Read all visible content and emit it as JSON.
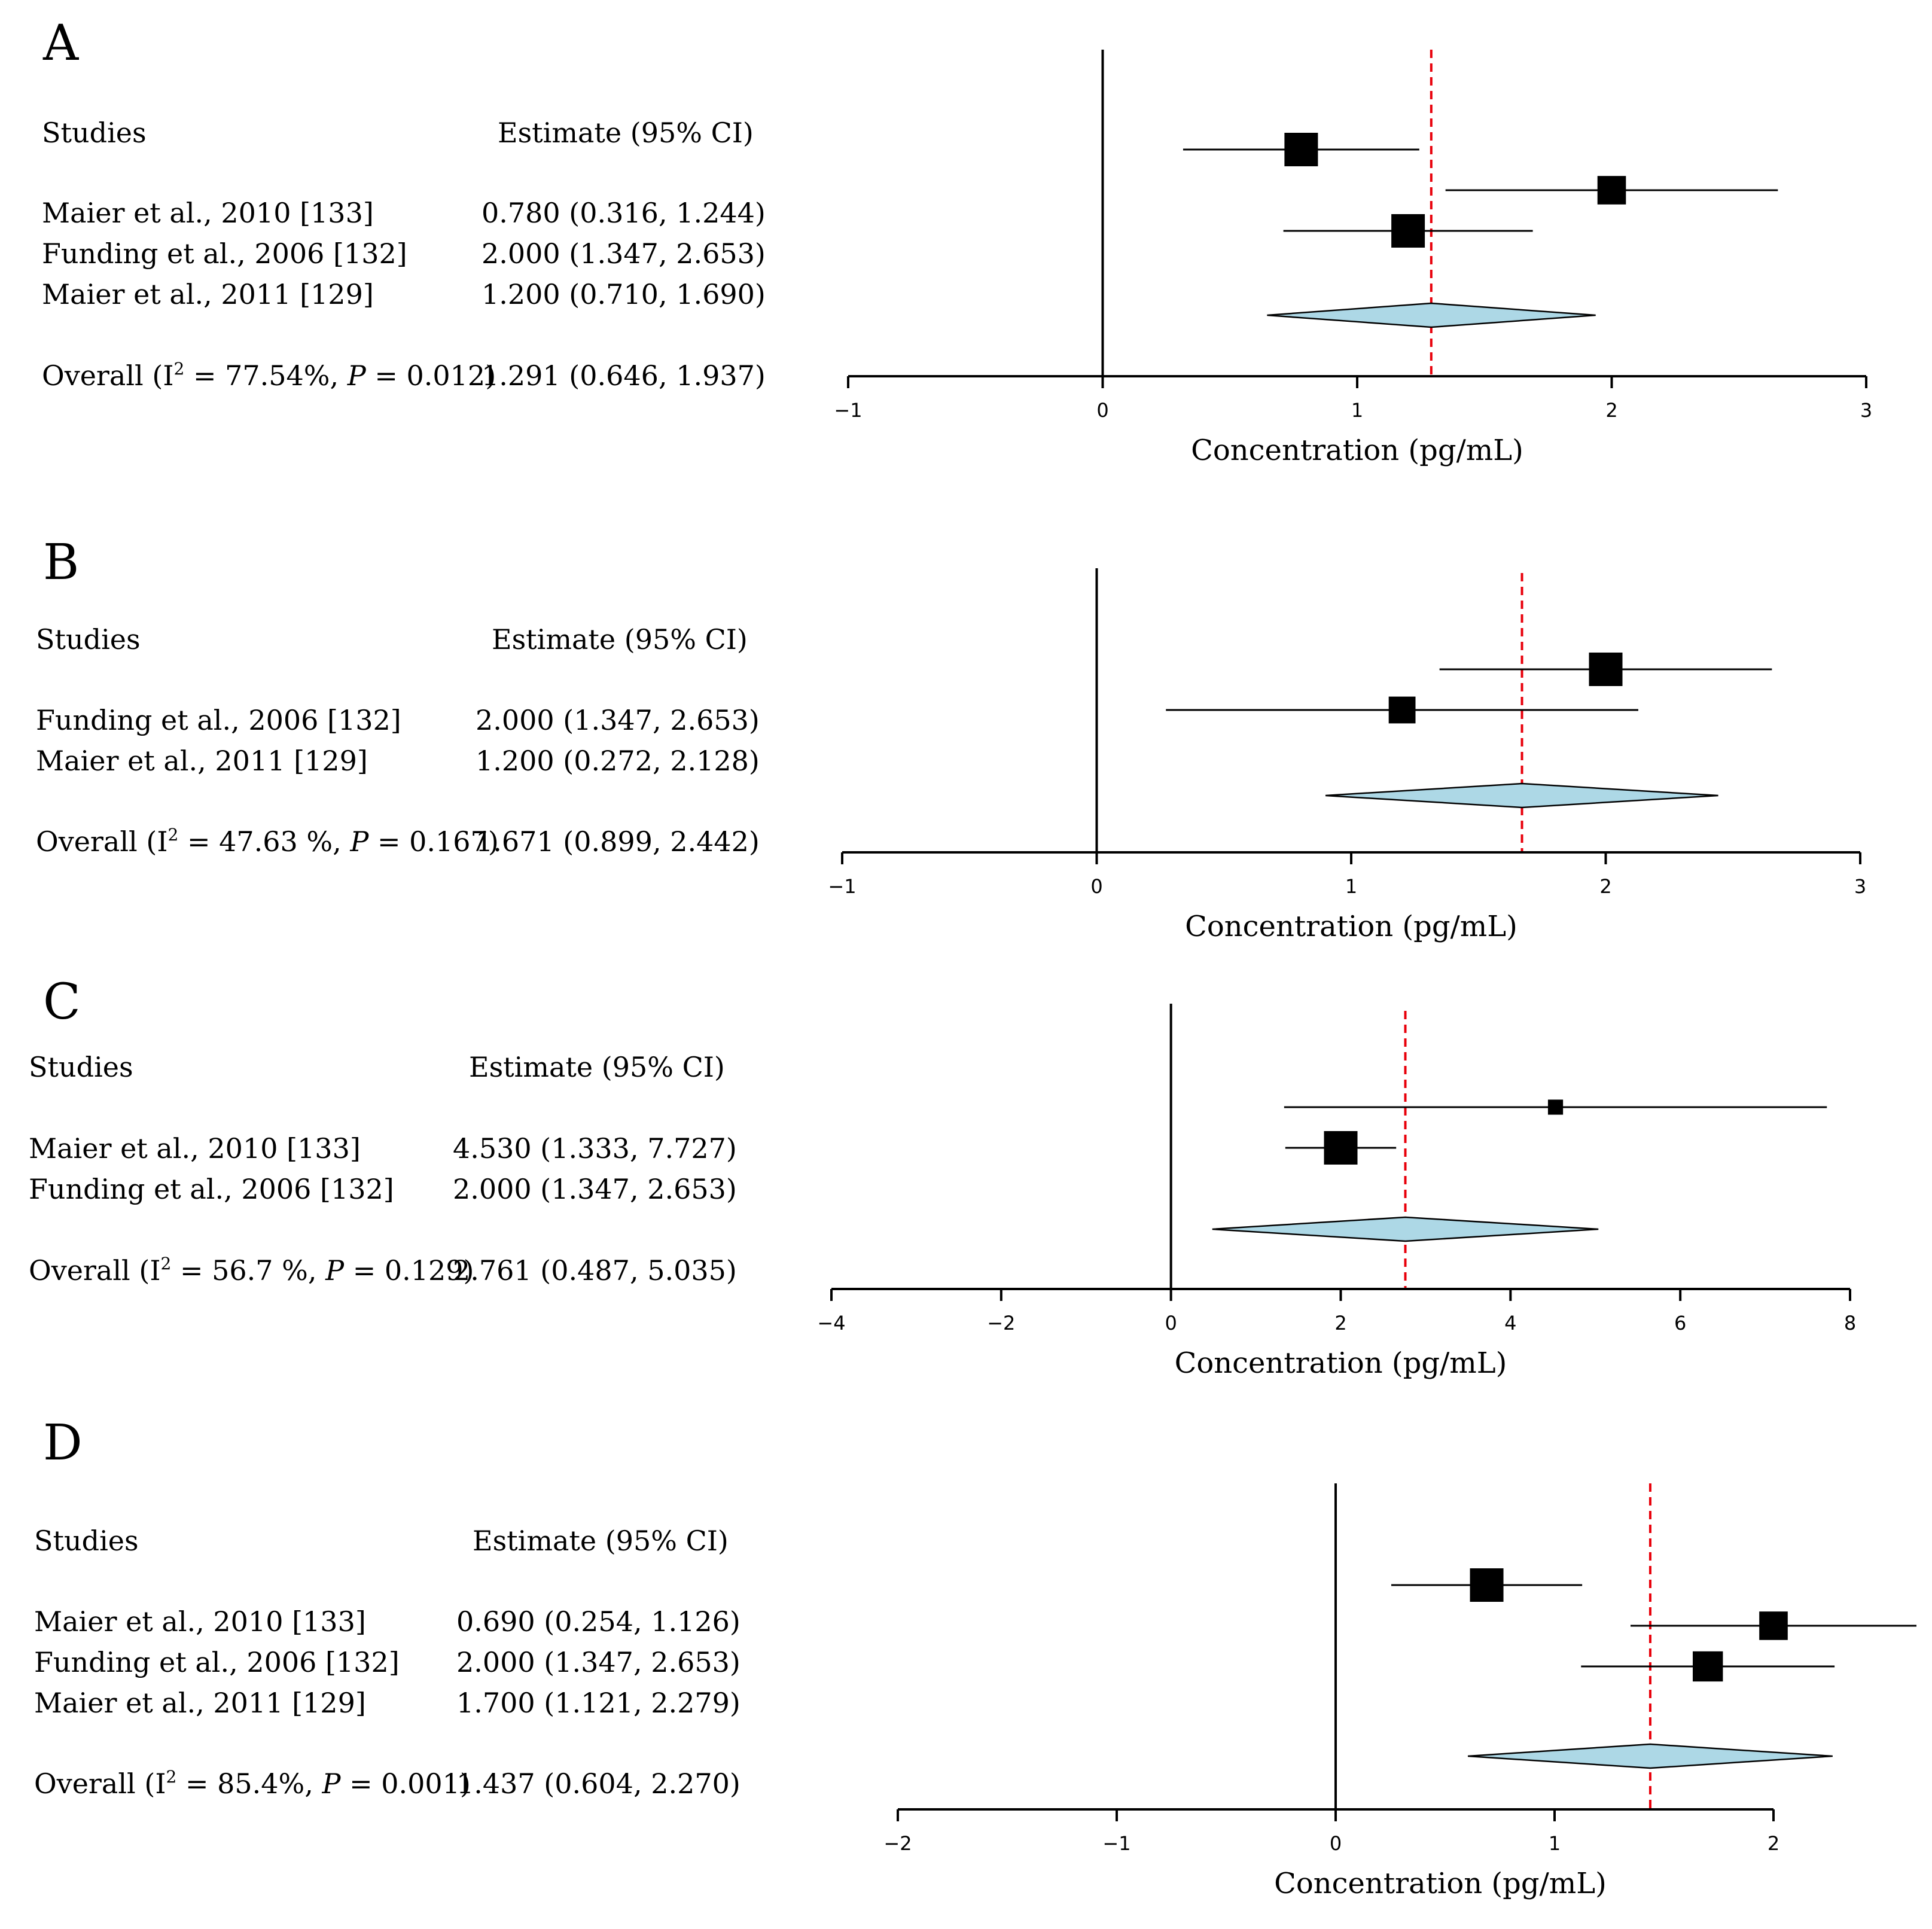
{
  "chart_data": [
    {
      "type": "forest",
      "panel": "A",
      "studies_header": "Studies",
      "estimate_header": "Estimate (95% CI)",
      "xlabel": "Concentration (pg/mL)",
      "xlim": [
        -1,
        3
      ],
      "ticks": [
        -1,
        0,
        1,
        2,
        3
      ],
      "tick_labels": [
        "−1",
        "0",
        "1",
        "2",
        "3"
      ],
      "reference_line": 0,
      "studies": [
        {
          "label": "Maier et al., 2010 [133]",
          "estimate_text": "0.780 (0.316, 1.244)",
          "estimate": 0.78,
          "lower": 0.316,
          "upper": 1.244,
          "weight": 1.0
        },
        {
          "label": "Funding et al., 2006 [132]",
          "estimate_text": "2.000 (1.347, 2.653)",
          "estimate": 2.0,
          "lower": 1.347,
          "upper": 2.653,
          "weight": 0.85
        },
        {
          "label": "Maier et al., 2011 [129]",
          "estimate_text": "1.200 (0.710, 1.690)",
          "estimate": 1.2,
          "lower": 0.71,
          "upper": 1.69,
          "weight": 1.0
        }
      ],
      "overall": {
        "label_prefix": "Overall (I",
        "sup": "2",
        "label_mid": " = 77.54%, ",
        "p_label": "P",
        "label_suffix": " = 0.012)",
        "estimate_text": "1.291 (0.646, 1.937)",
        "estimate": 1.291,
        "lower": 0.646,
        "upper": 1.937
      }
    },
    {
      "type": "forest",
      "panel": "B",
      "studies_header": "Studies",
      "estimate_header": "Estimate (95% CI)",
      "xlabel": "Concentration (pg/mL)",
      "xlim": [
        -1,
        3
      ],
      "ticks": [
        -1,
        0,
        1,
        2,
        3
      ],
      "tick_labels": [
        "−1",
        "0",
        "1",
        "2",
        "3"
      ],
      "reference_line": 0,
      "studies": [
        {
          "label": "Funding et al., 2006 [132]",
          "estimate_text": "2.000 (1.347, 2.653)",
          "estimate": 2.0,
          "lower": 1.347,
          "upper": 2.653,
          "weight": 1.0
        },
        {
          "label": "Maier et al., 2011 [129]",
          "estimate_text": "1.200 (0.272, 2.128)",
          "estimate": 1.2,
          "lower": 0.272,
          "upper": 2.128,
          "weight": 0.8
        }
      ],
      "overall": {
        "label_prefix": "Overall (I",
        "sup": "2",
        "label_mid": " = 47.63 %, ",
        "p_label": "P",
        "label_suffix": " = 0.167)",
        "estimate_text": "1.671 (0.899, 2.442)",
        "estimate": 1.671,
        "lower": 0.899,
        "upper": 2.442
      }
    },
    {
      "type": "forest",
      "panel": "C",
      "studies_header": "Studies",
      "estimate_header": "Estimate (95% CI)",
      "xlabel": "Concentration (pg/mL)",
      "xlim": [
        -4,
        8
      ],
      "ticks": [
        -4,
        -2,
        0,
        2,
        4,
        6,
        8
      ],
      "tick_labels": [
        "−4",
        "−2",
        "0",
        "2",
        "4",
        "6",
        "8"
      ],
      "reference_line": 0,
      "studies": [
        {
          "label": "Maier et al., 2010 [133]",
          "estimate_text": "4.530 (1.333, 7.727)",
          "estimate": 4.53,
          "lower": 1.333,
          "upper": 7.727,
          "weight": 0.45
        },
        {
          "label": "Funding et al., 2006 [132]",
          "estimate_text": "2.000 (1.347, 2.653)",
          "estimate": 2.0,
          "lower": 1.347,
          "upper": 2.653,
          "weight": 1.0
        }
      ],
      "overall": {
        "label_prefix": "Overall (I",
        "sup": "2",
        "label_mid": " = 56.7 %, ",
        "p_label": "P",
        "label_suffix": " = 0.129)",
        "estimate_text": "2.761 (0.487, 5.035)",
        "estimate": 2.761,
        "lower": 0.487,
        "upper": 5.035
      }
    },
    {
      "type": "forest",
      "panel": "D",
      "studies_header": "Studies",
      "estimate_header": "Estimate (95% CI)",
      "xlabel": "Concentration (pg/mL)",
      "xlim": [
        -2,
        2
      ],
      "ticks": [
        -2,
        -1,
        0,
        1,
        2
      ],
      "tick_labels": [
        "−2",
        "−1",
        "0",
        "1",
        "2"
      ],
      "reference_line": 0,
      "studies": [
        {
          "label": "Maier et al., 2010 [133]",
          "estimate_text": "0.690 (0.254, 1.126)",
          "estimate": 0.69,
          "lower": 0.254,
          "upper": 1.126,
          "weight": 1.0
        },
        {
          "label": "Funding et al., 2006 [132]",
          "estimate_text": "2.000 (1.347, 2.653)",
          "estimate": 2.0,
          "lower": 1.347,
          "upper": 2.653,
          "weight": 0.85
        },
        {
          "label": "Maier et al., 2011 [129]",
          "estimate_text": "1.700 (1.121, 2.279)",
          "estimate": 1.7,
          "lower": 1.121,
          "upper": 2.279,
          "weight": 0.9
        }
      ],
      "overall": {
        "label_prefix": "Overall (I",
        "sup": "2",
        "label_mid": " = 85.4%, ",
        "p_label": "P",
        "label_suffix": " = 0.001)",
        "estimate_text": "1.437 (0.604, 2.270)",
        "estimate": 1.437,
        "lower": 0.604,
        "upper": 2.27
      }
    }
  ],
  "colors": {
    "marker": "#000000",
    "summary_fill": "#add8e6",
    "summary_line": "#6d6d6d",
    "pooled_line": "#e8000b",
    "axis": "#000000"
  }
}
